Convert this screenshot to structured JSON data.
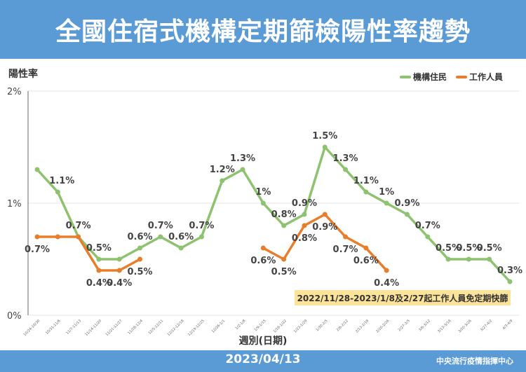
{
  "title": "全國住宿式機構定期篩檢陽性率趨勢",
  "footer": {
    "date": "2023/04/13",
    "org": "中央流行疫情指揮中心"
  },
  "chart_data": {
    "type": "line",
    "title": "全國住宿式機構定期篩檢陽性率趨勢",
    "ylabel": "陽性率",
    "xlabel": "週別(日期)",
    "ylim": [
      0,
      2
    ],
    "yticks": [
      "0%",
      "1%",
      "2%"
    ],
    "grid": true,
    "legend": "top-right",
    "colors": {
      "residents": "#8dc26f",
      "staff": "#e87e2c",
      "header": "#5b9bd5"
    },
    "categories": [
      "10/24-10/30",
      "10/31-11/6",
      "11/7-11/13",
      "11/14-11/20",
      "11/21-11/27",
      "11/28-12/4",
      "12/5-12/11",
      "12/12-12/18",
      "12/19-12/25",
      "12/26-1/1",
      "1/2-1/8",
      "1/9-1/15",
      "1/16-1/22",
      "1/23-1/29",
      "1/30-2/5",
      "2/6-2/12",
      "2/13-2/19",
      "2/20-2/26",
      "2/27-3/5",
      "3/6-3/12",
      "3/13-3/19",
      "3/20-3/26",
      "3/27-4/2",
      "4/3-4/9"
    ],
    "series": [
      {
        "name": "機構住民",
        "values": [
          1.3,
          1.1,
          0.7,
          0.5,
          0.5,
          0.6,
          0.7,
          0.6,
          0.7,
          1.2,
          1.3,
          1,
          0.8,
          0.9,
          1.5,
          1.3,
          1.1,
          1,
          0.9,
          0.7,
          0.5,
          0.5,
          0.5,
          0.3
        ],
        "labels": [
          null,
          "1.1%",
          "0.7%",
          "0.5%",
          null,
          "0.6%",
          "0.7%",
          "0.6%",
          "0.7%",
          "1.2%",
          "1.3%",
          "1%",
          "0.8%",
          "0.9%",
          "1.5%",
          "1.3%",
          "1.1%",
          "1%",
          "0.9%",
          "0.7%",
          "0.5%",
          "0.5%",
          "0.5%",
          "0.3%"
        ]
      },
      {
        "name": "工作人員",
        "values": [
          0.7,
          0.7,
          0.7,
          0.4,
          0.4,
          0.5,
          null,
          null,
          null,
          null,
          null,
          0.6,
          0.5,
          0.8,
          0.9,
          0.7,
          0.6,
          0.4,
          null,
          null,
          null,
          null,
          null,
          null
        ],
        "labels": [
          "0.7%",
          null,
          null,
          "0.4%",
          "0.4%",
          "0.5%",
          null,
          null,
          null,
          null,
          null,
          "0.6%",
          "0.5%",
          "0.8%",
          "0.9%",
          "0.7%",
          "0.6%",
          "0.4%",
          null,
          null,
          null,
          null,
          null,
          null
        ]
      }
    ],
    "annotation": "2022/11/28-2023/1/8及2/27起工作人員免定期快篩"
  }
}
